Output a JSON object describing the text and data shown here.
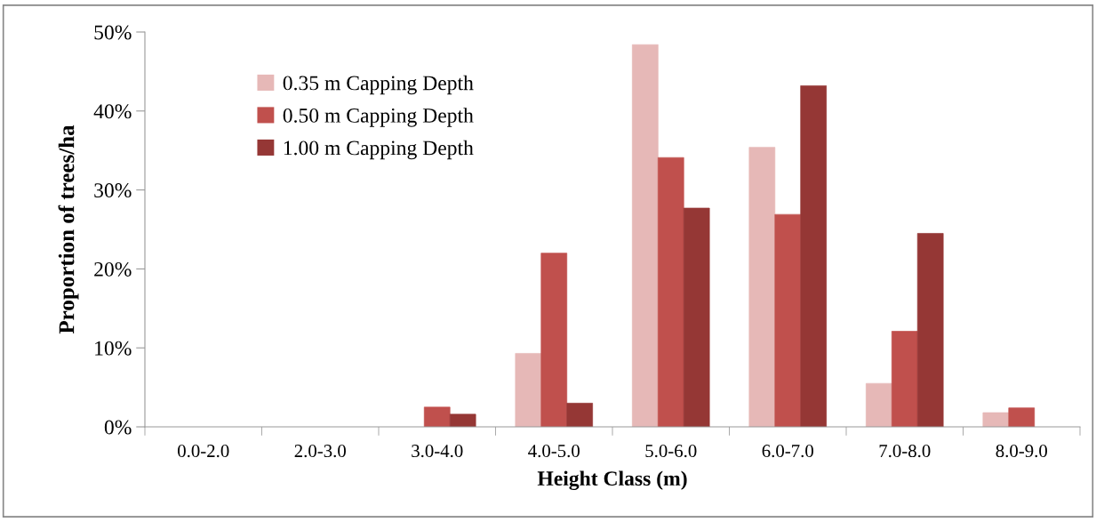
{
  "chart_data": {
    "type": "bar",
    "xlabel": "Height Class (m)",
    "ylabel": "Proportion of trees/ha",
    "categories": [
      "0.0-2.0",
      "2.0-3.0",
      "3.0-4.0",
      "4.0-5.0",
      "5.0-6.0",
      "6.0-7.0",
      "7.0-8.0",
      "8.0-9.0"
    ],
    "series": [
      {
        "name": "0.35 m Capping Depth",
        "color": "#e6b8b7",
        "values": [
          null,
          null,
          null,
          9.3,
          48.4,
          35.4,
          5.5,
          1.8
        ]
      },
      {
        "name": "0.50 m Capping Depth",
        "color": "#c0504d",
        "values": [
          null,
          null,
          2.5,
          22.0,
          34.1,
          26.9,
          12.1,
          2.4
        ]
      },
      {
        "name": "1.00 m Capping Depth",
        "color": "#953735",
        "values": [
          null,
          null,
          1.6,
          3.0,
          27.7,
          43.2,
          24.5,
          null
        ]
      }
    ],
    "ylim": [
      0,
      50
    ],
    "yticks": [
      {
        "value": 0,
        "label": "0%"
      },
      {
        "value": 10,
        "label": "10%"
      },
      {
        "value": 20,
        "label": "20%"
      },
      {
        "value": 30,
        "label": "30%"
      },
      {
        "value": 40,
        "label": "40%"
      },
      {
        "value": 50,
        "label": "50%"
      }
    ],
    "grid": false,
    "legend": "top left"
  }
}
